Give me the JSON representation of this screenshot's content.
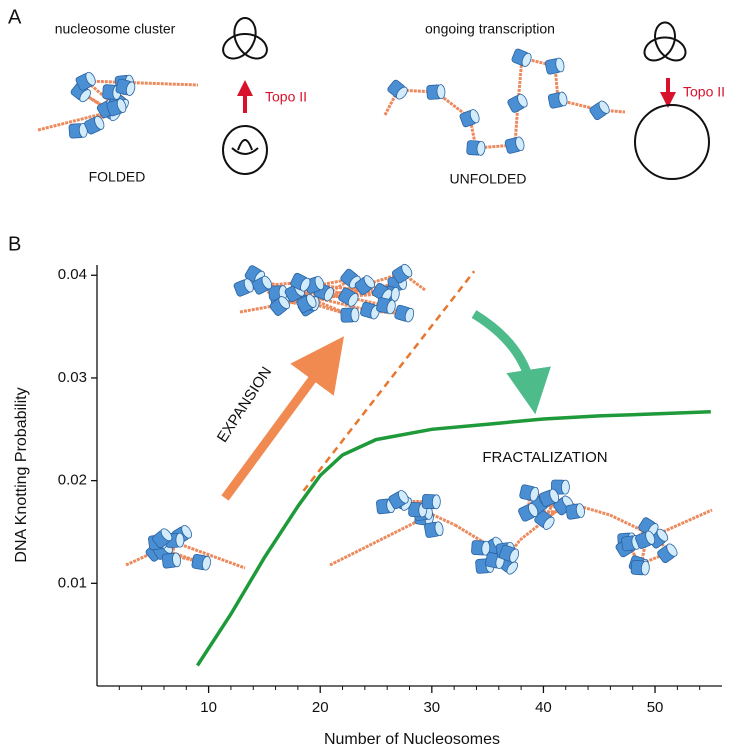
{
  "panel_labels": [
    "A",
    "B"
  ],
  "panel_a": {
    "left_caption": "nucleosome cluster",
    "left_state": "FOLDED",
    "left_enzyme": "Topo II",
    "right_caption": "ongoing transcription",
    "right_state": "UNFOLDED",
    "right_enzyme": "Topo II"
  },
  "chart_data": {
    "type": "line",
    "x_label": "Number of Nucleosomes",
    "y_label": "DNA Knotting Probability",
    "xlim": [
      0,
      56
    ],
    "ylim": [
      0,
      0.041
    ],
    "xticks": [
      10,
      20,
      30,
      40,
      50
    ],
    "xminorticks": [
      2,
      4,
      6,
      8,
      12,
      14,
      16,
      18,
      22,
      24,
      26,
      28,
      32,
      34,
      36,
      38,
      42,
      44,
      46,
      48,
      52,
      54
    ],
    "yticks": [
      0.01,
      0.02,
      0.03,
      0.04
    ],
    "series": [
      {
        "color": "#1e9a3a",
        "style": "solid",
        "x": [
          9,
          12,
          15,
          18,
          20,
          22,
          25,
          30,
          35,
          40,
          45,
          50,
          55
        ],
        "values": [
          0.002,
          0.007,
          0.0125,
          0.0175,
          0.0205,
          0.0225,
          0.024,
          0.025,
          0.0255,
          0.026,
          0.0263,
          0.0265,
          0.0267
        ]
      },
      {
        "color": "#e8762c",
        "style": "dashed",
        "x": [
          18.5,
          33.8
        ],
        "values": [
          0.019,
          0.0404
        ]
      }
    ],
    "annotations": [
      "EXPANSION",
      "FRACTALIZATION"
    ]
  }
}
